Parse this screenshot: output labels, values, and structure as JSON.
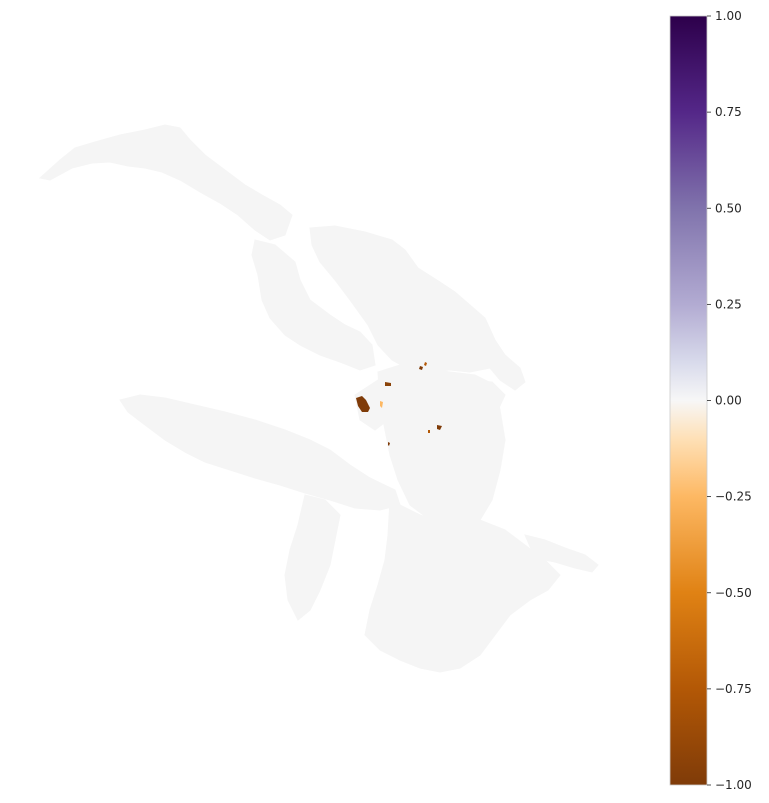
{
  "map": {
    "colormap": "PuOr",
    "land_color": "#f5f5f5",
    "highlight_colors": [
      "#7f3b08",
      "#b35806",
      "#fdb863",
      "#fee0b6"
    ]
  },
  "colorbar": {
    "min": -1.0,
    "max": 1.0,
    "ticks": [
      {
        "value": 1.0,
        "label": "1.00"
      },
      {
        "value": 0.75,
        "label": "0.75"
      },
      {
        "value": 0.5,
        "label": "0.50"
      },
      {
        "value": 0.25,
        "label": "0.25"
      },
      {
        "value": 0.0,
        "label": "0.00"
      },
      {
        "value": -0.25,
        "label": "−0.25"
      },
      {
        "value": -0.5,
        "label": "−0.50"
      },
      {
        "value": -0.75,
        "label": "−0.75"
      },
      {
        "value": -1.0,
        "label": "−1.00"
      }
    ],
    "gradient_stops": [
      {
        "value": 1.0,
        "color": "#2d004b"
      },
      {
        "value": 0.75,
        "color": "#542788"
      },
      {
        "value": 0.5,
        "color": "#8073ac"
      },
      {
        "value": 0.25,
        "color": "#b2abd2"
      },
      {
        "value": 0.1,
        "color": "#d8daeb"
      },
      {
        "value": 0.0,
        "color": "#f7f7f7"
      },
      {
        "value": -0.1,
        "color": "#fee0b6"
      },
      {
        "value": -0.25,
        "color": "#fdb863"
      },
      {
        "value": -0.5,
        "color": "#e08214"
      },
      {
        "value": -0.75,
        "color": "#b35806"
      },
      {
        "value": -1.0,
        "color": "#7f3b08"
      }
    ]
  }
}
